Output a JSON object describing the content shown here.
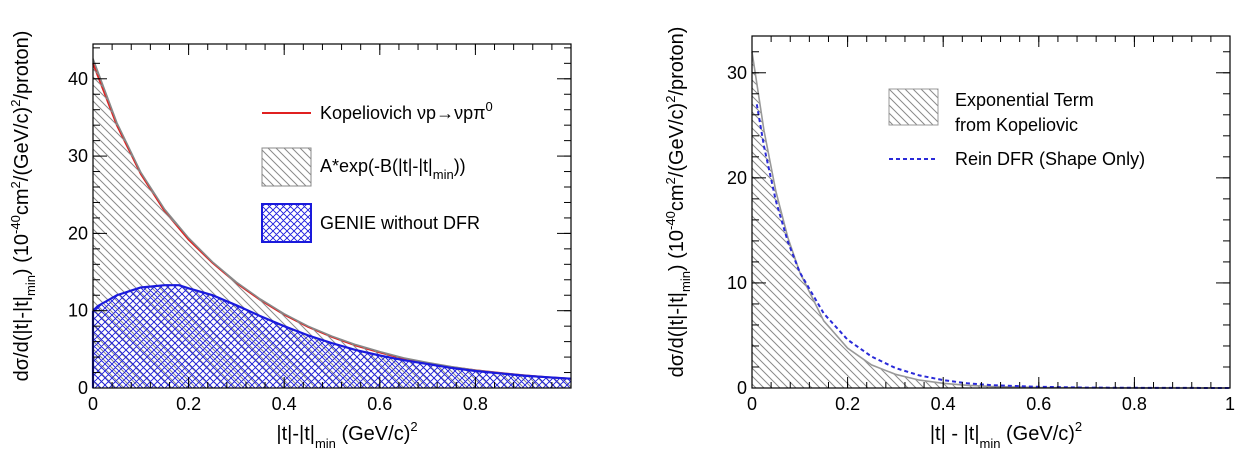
{
  "chart_data": [
    {
      "type": "area",
      "xlabel": "|t|-|t|",
      "xlabel_sub": "min",
      "xlabel_unit": "(GeV/c)",
      "xlabel_sup": "2",
      "ylabel": "dσ/d(|t|-|t|",
      "ylabel_sub": "min",
      "ylabel_mid": ") (10",
      "ylabel_sup1": "-40",
      "ylabel_mid2": "cm",
      "ylabel_sup2": "2",
      "ylabel_end": "/(GeV/c)",
      "ylabel_sup3": "2",
      "ylabel_tail": "/proton)",
      "xlim": [
        0,
        1.0
      ],
      "ylim": [
        0,
        44.5
      ],
      "xticks": [
        0,
        0.2,
        0.4,
        0.6,
        0.8
      ],
      "xticklabels": [
        "0",
        "0.2",
        "0.4",
        "0.6",
        "0.8"
      ],
      "yticks": [
        0,
        10,
        20,
        30,
        40
      ],
      "yticklabels": [
        "0",
        "10",
        "20",
        "30",
        "40"
      ],
      "series": [
        {
          "name": "Kopeliovich νp→νpπ",
          "name_sup": "0",
          "style": "line",
          "color": "#e02020",
          "x": [
            0,
            0.05,
            0.1,
            0.15,
            0.2,
            0.25,
            0.3,
            0.35,
            0.4,
            0.45,
            0.5,
            0.55,
            0.6,
            0.65,
            0.7,
            0.75,
            0.8,
            0.85,
            0.9,
            0.95,
            1.0
          ],
          "y": [
            42.0,
            34.0,
            27.7,
            22.9,
            19.2,
            16.2,
            13.6,
            11.4,
            9.5,
            7.9,
            6.6,
            5.5,
            4.6,
            3.8,
            3.2,
            2.7,
            2.3,
            1.95,
            1.65,
            1.4,
            1.2
          ]
        },
        {
          "name": "A*exp(-B(|t|-|t|",
          "name_sub": "min",
          "name_end": "))",
          "style": "hatched-histogram",
          "color": "#888888",
          "x": [
            0,
            0.05,
            0.1,
            0.15,
            0.2,
            0.25,
            0.3,
            0.35,
            0.4,
            0.45,
            0.5,
            0.55,
            0.6,
            0.65,
            0.7,
            0.75,
            0.8,
            0.85,
            0.9,
            0.95,
            1.0
          ],
          "y": [
            42.6,
            34.3,
            27.9,
            23.1,
            19.4,
            16.3,
            13.7,
            11.5,
            9.6,
            8.0,
            6.7,
            5.6,
            4.7,
            3.9,
            3.3,
            2.75,
            2.3,
            1.95,
            1.65,
            1.4,
            1.2
          ]
        },
        {
          "name": "GENIE without DFR",
          "style": "crosshatched-histogram",
          "color": "#1a1adc",
          "x": [
            0,
            0.01,
            0.05,
            0.1,
            0.15,
            0.18,
            0.2,
            0.25,
            0.3,
            0.35,
            0.4,
            0.45,
            0.5,
            0.55,
            0.6,
            0.65,
            0.7,
            0.75,
            0.8,
            0.85,
            0.9,
            0.95,
            1.0
          ],
          "y": [
            10.0,
            10.6,
            12.0,
            13.0,
            13.3,
            13.3,
            12.9,
            12.0,
            10.7,
            9.3,
            8.0,
            6.8,
            5.8,
            4.9,
            4.2,
            3.6,
            3.1,
            2.6,
            2.2,
            1.9,
            1.6,
            1.4,
            1.2
          ]
        }
      ],
      "legend": "top-right"
    },
    {
      "type": "area",
      "xlabel": "|t| - |t|",
      "xlabel_sub": "min",
      "xlabel_unit": "(GeV/c)",
      "xlabel_sup": "2",
      "ylabel": "dσ/d(|t|-|t|",
      "ylabel_sub": "min",
      "ylabel_mid": ") (10",
      "ylabel_sup1": "-40",
      "ylabel_mid2": "cm",
      "ylabel_sup2": "2",
      "ylabel_end": "/(GeV/c)",
      "ylabel_sup3": "2",
      "ylabel_tail": "/proton)",
      "xlim": [
        0,
        1.0
      ],
      "ylim": [
        0,
        33.5
      ],
      "xticks": [
        0,
        0.2,
        0.4,
        0.6,
        0.8,
        1.0
      ],
      "xticklabels": [
        "0",
        "0.2",
        "0.4",
        "0.6",
        "0.8",
        "1"
      ],
      "yticks": [
        0,
        10,
        20,
        30
      ],
      "yticklabels": [
        "0",
        "10",
        "20",
        "30"
      ],
      "series": [
        {
          "name": "Exponential Term",
          "name_line2": "from Kopeliovic",
          "style": "hatched-area",
          "color": "#999999",
          "x": [
            0,
            0.025,
            0.05,
            0.075,
            0.1,
            0.15,
            0.2,
            0.25,
            0.3,
            0.35,
            0.4,
            0.45,
            0.5,
            0.6,
            0.7,
            0.8,
            0.9,
            1.0
          ],
          "y": [
            32.0,
            24.5,
            18.7,
            14.3,
            11.0,
            6.4,
            3.8,
            2.2,
            1.3,
            0.75,
            0.45,
            0.26,
            0.15,
            0.05,
            0.02,
            0.01,
            0.0,
            0.0
          ]
        },
        {
          "name": "Rein DFR (Shape Only)",
          "style": "dashed-line",
          "color": "#2a2ad8",
          "x": [
            0.01,
            0.025,
            0.05,
            0.075,
            0.1,
            0.15,
            0.2,
            0.25,
            0.3,
            0.35,
            0.4,
            0.45,
            0.5,
            0.6,
            0.7,
            0.8,
            0.9,
            1.0
          ],
          "y": [
            27.0,
            23.0,
            17.8,
            13.9,
            11.0,
            7.1,
            4.6,
            3.0,
            1.9,
            1.2,
            0.75,
            0.45,
            0.28,
            0.11,
            0.04,
            0.02,
            0.01,
            0.0
          ]
        }
      ],
      "legend": "top-right"
    }
  ]
}
